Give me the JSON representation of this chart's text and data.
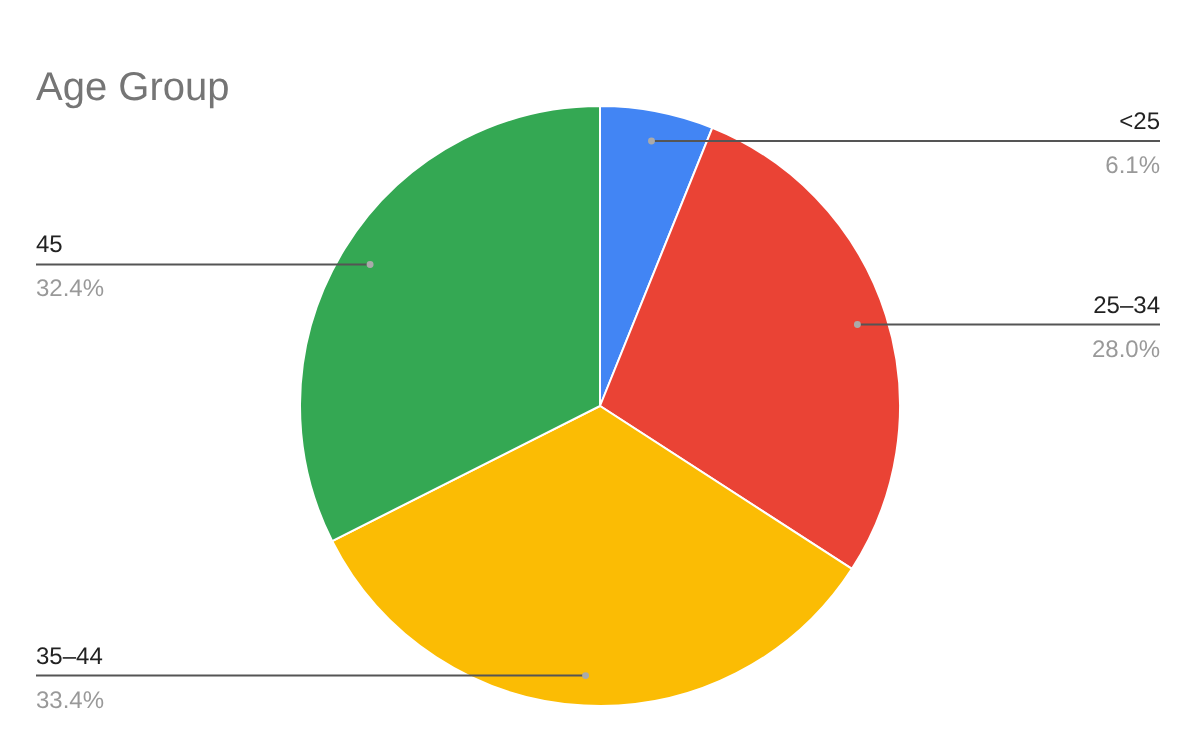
{
  "chart_data": {
    "type": "pie",
    "title": "Age Group",
    "categories": [
      "<25",
      "25–34",
      "35–44",
      "45"
    ],
    "values": [
      6.1,
      28.0,
      33.4,
      32.4
    ],
    "value_labels": [
      "6.1%",
      "28.0%",
      "33.4%",
      "32.4%"
    ],
    "colors": [
      "#4285f4",
      "#ea4335",
      "#fbbc04",
      "#34a853"
    ]
  }
}
